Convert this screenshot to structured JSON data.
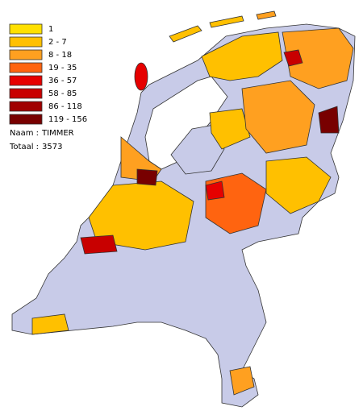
{
  "legend": {
    "items": [
      {
        "label": "1",
        "color": "#ffe000"
      },
      {
        "label": "2 - 7",
        "color": "#ffc000"
      },
      {
        "label": "8 - 18",
        "color": "#ffa020"
      },
      {
        "label": "19 - 35",
        "color": "#ff6410"
      },
      {
        "label": "36 - 57",
        "color": "#e60000"
      },
      {
        "label": "58 - 85",
        "color": "#c80000"
      },
      {
        "label": "86 - 118",
        "color": "#a00000"
      },
      {
        "label": "119 - 156",
        "color": "#780000"
      }
    ]
  },
  "info": {
    "name": {
      "label": "Naam :",
      "value": "TIMMER"
    },
    "total": {
      "label": "Totaal :",
      "value": 3573
    }
  }
}
